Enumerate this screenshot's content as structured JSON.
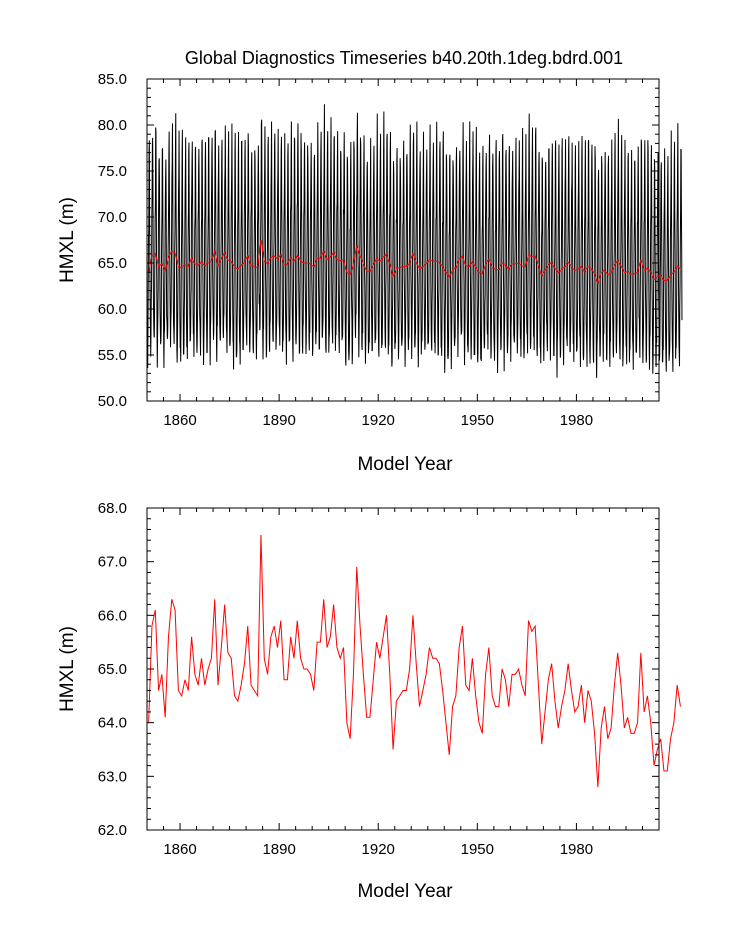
{
  "chart_data": [
    {
      "type": "line",
      "title": "Global Diagnostics Timeseries b40.20th.1deg.bdrd.001",
      "xlabel": "Model Year",
      "ylabel": "HMXL (m)",
      "xlim": [
        1850,
        2005
      ],
      "ylim": [
        50.0,
        85.0
      ],
      "xticks": [
        1860,
        1890,
        1920,
        1950,
        1980
      ],
      "yticks": [
        "50.0",
        "55.0",
        "60.0",
        "65.0",
        "70.0",
        "75.0",
        "80.0",
        "85.0"
      ],
      "series": [
        {
          "color": "#000000",
          "description": "monthly values, seasonal cycle from about 53 to 80 around the annual mean",
          "monthly_offsets": [
            -8.0,
            -9.3,
            -8.8,
            -6.0,
            -1.5,
            3.5,
            6.5,
            11.5,
            13.5,
            7.0,
            0.5,
            -4.5
          ]
        },
        {
          "color": "#ff0000",
          "description": "annual mean",
          "values_ref": "annual_mean"
        }
      ]
    },
    {
      "type": "line",
      "xlabel": "Model Year",
      "ylabel": "HMXL (m)",
      "xlim": [
        1850,
        2005
      ],
      "ylim": [
        62.0,
        68.0
      ],
      "xticks": [
        1860,
        1890,
        1920,
        1950,
        1980
      ],
      "yticks": [
        "62.0",
        "63.0",
        "64.0",
        "65.0",
        "66.0",
        "67.0",
        "68.0"
      ],
      "series": [
        {
          "color": "#ff0000",
          "values_ref": "annual_mean"
        }
      ]
    }
  ],
  "annual_mean": {
    "x_start": 1850,
    "values": [
      64.0,
      65.8,
      66.1,
      64.6,
      64.9,
      64.1,
      65.6,
      66.3,
      66.1,
      64.6,
      64.5,
      64.8,
      64.6,
      65.6,
      64.9,
      64.7,
      65.2,
      64.7,
      65.0,
      65.2,
      66.3,
      64.7,
      65.4,
      66.2,
      65.3,
      65.2,
      64.5,
      64.4,
      64.7,
      65.1,
      65.8,
      64.7,
      64.6,
      64.5,
      67.5,
      65.2,
      64.9,
      65.6,
      65.8,
      65.4,
      65.9,
      64.8,
      64.8,
      65.6,
      65.2,
      65.9,
      65.2,
      65.0,
      65.0,
      64.9,
      64.6,
      65.5,
      65.5,
      66.3,
      65.4,
      65.6,
      66.2,
      65.4,
      65.2,
      65.4,
      64.0,
      63.7,
      64.9,
      66.9,
      65.8,
      64.9,
      64.1,
      64.1,
      64.8,
      65.5,
      65.2,
      65.6,
      66.0,
      64.9,
      63.5,
      64.4,
      64.5,
      64.6,
      64.6,
      65.0,
      66.0,
      65.1,
      64.3,
      64.6,
      64.9,
      65.4,
      65.2,
      65.2,
      65.1,
      64.6,
      64.0,
      63.4,
      64.3,
      64.5,
      65.4,
      65.8,
      64.7,
      64.6,
      65.2,
      64.5,
      64.0,
      63.8,
      64.9,
      65.4,
      64.5,
      64.3,
      64.3,
      65.0,
      64.8,
      64.3,
      64.9,
      64.9,
      65.0,
      64.7,
      64.5,
      65.9,
      65.7,
      65.8,
      64.7,
      63.6,
      64.2,
      64.8,
      65.1,
      64.4,
      63.9,
      64.3,
      64.6,
      65.1,
      64.6,
      64.2,
      64.3,
      64.7,
      64.0,
      64.6,
      64.4,
      63.8,
      62.8,
      63.9,
      64.3,
      63.7,
      63.9,
      64.7,
      65.3,
      64.7,
      63.9,
      64.1,
      63.8,
      63.8,
      64.0,
      65.3,
      64.2,
      64.5,
      64.0,
      63.2,
      63.5,
      63.7,
      63.1,
      63.1,
      63.7,
      64.0,
      64.7,
      64.3
    ]
  }
}
